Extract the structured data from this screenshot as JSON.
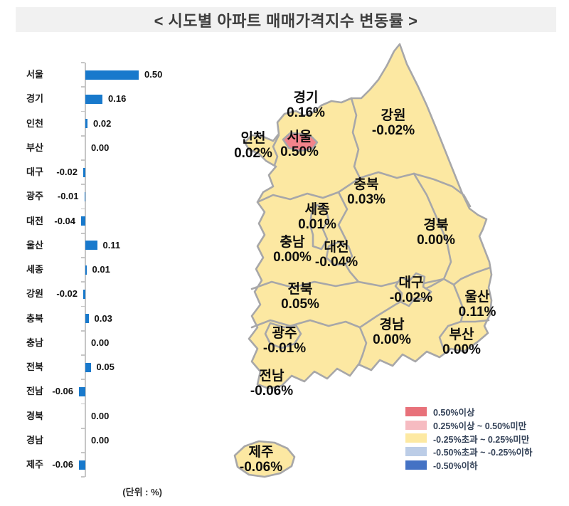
{
  "title": "<  시도별  아파트  매매가격지수  변동률  >",
  "unit_note": "(단위 : %)",
  "chart_data": {
    "type": "bar",
    "orientation": "horizontal",
    "title": "시도별 아파트 매매가격지수 변동률",
    "unit": "%",
    "categories": [
      "서울",
      "경기",
      "인천",
      "부산",
      "대구",
      "광주",
      "대전",
      "울산",
      "세종",
      "강원",
      "충북",
      "충남",
      "전북",
      "전남",
      "경북",
      "경남",
      "제주"
    ],
    "values": [
      0.5,
      0.16,
      0.02,
      0.0,
      -0.02,
      -0.01,
      -0.04,
      0.11,
      0.01,
      -0.02,
      0.03,
      0.0,
      0.05,
      -0.06,
      0.0,
      0.0,
      -0.06
    ],
    "labels": [
      "0.50",
      "0.16",
      "0.02",
      "0.00",
      "-0.02",
      "-0.01",
      "-0.04",
      "0.11",
      "0.01",
      "-0.02",
      "0.03",
      "0.00",
      "0.05",
      "-0.06",
      "0.00",
      "0.00",
      "-0.06"
    ],
    "bar_color": "#1879CC",
    "axis_color": "#C6C6C6",
    "xlim": [
      -0.1,
      0.6
    ],
    "grid": false
  },
  "map": {
    "fill_color": "#FCE8A2",
    "border_color": "#A7A7A9",
    "seoul_fill": "#F2838B",
    "regions": [
      {
        "name": "경기",
        "value": "0.16%"
      },
      {
        "name": "인천",
        "value": "0.02%"
      },
      {
        "name": "서울",
        "value": "0.50%"
      },
      {
        "name": "강원",
        "value": "-0.02%"
      },
      {
        "name": "충북",
        "value": "0.03%"
      },
      {
        "name": "세종",
        "value": "0.01%"
      },
      {
        "name": "충남",
        "value": "0.00%"
      },
      {
        "name": "대전",
        "value": "-0.04%"
      },
      {
        "name": "경북",
        "value": "0.00%"
      },
      {
        "name": "대구",
        "value": "-0.02%"
      },
      {
        "name": "울산",
        "value": "0.11%"
      },
      {
        "name": "전북",
        "value": "0.05%"
      },
      {
        "name": "광주",
        "value": "-0.01%"
      },
      {
        "name": "경남",
        "value": "0.00%"
      },
      {
        "name": "부산",
        "value": "0.00%"
      },
      {
        "name": "전남",
        "value": "-0.06%"
      },
      {
        "name": "제주",
        "value": "-0.06%"
      }
    ]
  },
  "legend": {
    "items": [
      {
        "label": "0.50%이상",
        "color": "#E8717A"
      },
      {
        "label": "0.25%이상 ~ 0.50%미만",
        "color": "#F6BBC1"
      },
      {
        "label": "-0.25%초과 ~ 0.25%미만",
        "color": "#FDE9A2"
      },
      {
        "label": "-0.50%초과 ~ -0.25%이하",
        "color": "#BCCDE7"
      },
      {
        "label": "-0.50%이하",
        "color": "#4472C4"
      }
    ]
  }
}
